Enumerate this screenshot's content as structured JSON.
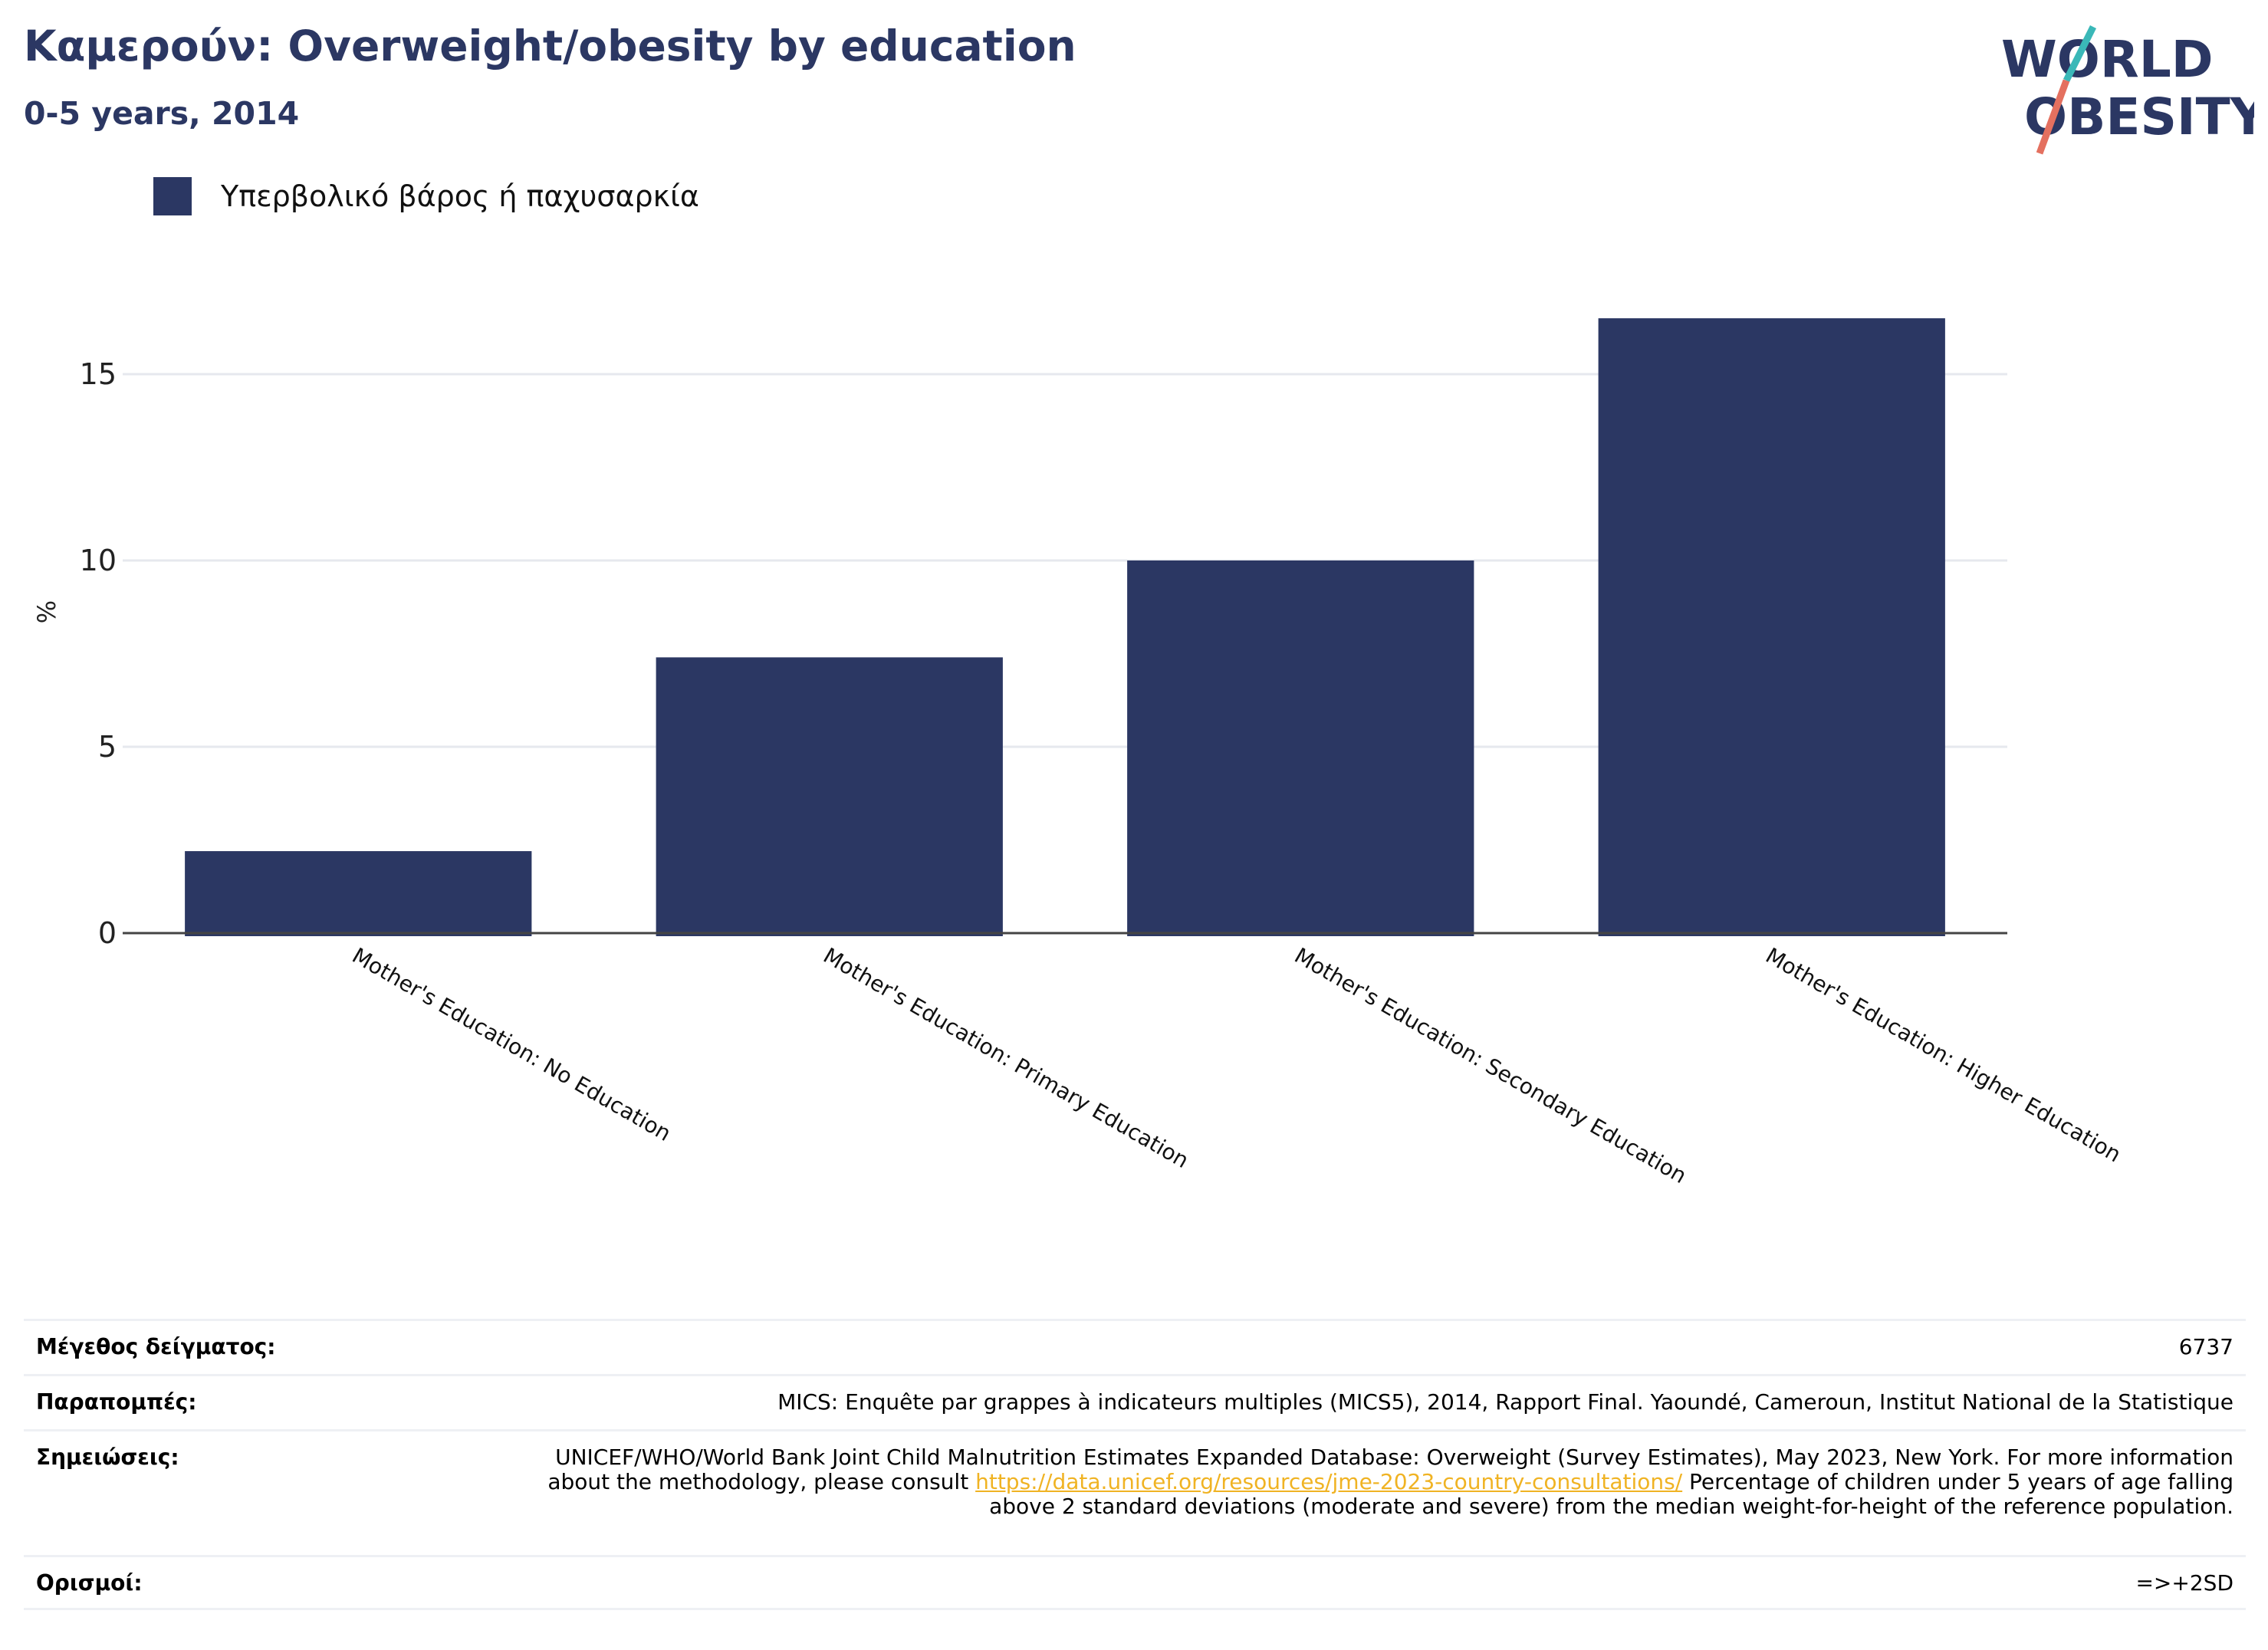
{
  "header": {
    "title": "Καμερούν: Overweight/obesity by education",
    "subtitle": "0-5 years, 2014"
  },
  "logo": {
    "line1": "WORLD",
    "line2": "OBESITY"
  },
  "legend": {
    "label": "Υπερβολικό βάρος ή παχυσαρκία",
    "color": "#2b3763"
  },
  "chart_data": {
    "type": "bar",
    "categories": [
      "Mother's Education: No Education",
      "Mother's Education: Primary Education",
      "Mother's Education: Secondary Education",
      "Mother's Education: Higher Education"
    ],
    "series": [
      {
        "name": "Υπερβολικό βάρος ή παχυσαρκία",
        "values": [
          2.2,
          7.4,
          10.0,
          16.5
        ],
        "color": "#2b3763"
      }
    ],
    "ylabel": "%",
    "ylim": [
      0,
      17.5
    ],
    "yticks": [
      0,
      5,
      10,
      15
    ],
    "grid": true,
    "legend_position": "top-left"
  },
  "footer": {
    "sample_label": "Μέγεθος δείγματος:",
    "sample_value": "6737",
    "refs_label": "Παραπομπές:",
    "refs_value": "MICS: Enquête par grappes à indicateurs multiples (MICS5), 2014, Rapport Final. Yaoundé, Cameroun, Institut National de la Statistique",
    "notes_label": "Σημειώσεις:",
    "notes_pre": "UNICEF/WHO/World Bank Joint Child Malnutrition Estimates Expanded Database: Overweight (Survey Estimates), May 2023, New York. For more information about the methodology, please consult",
    "notes_link": "https://data.unicef.org/resources/jme-2023-country-consultations/",
    "notes_post": "Percentage of children under 5 years of age falling above 2 standard deviations (moderate and severe) from the median weight-for-height of the reference population.",
    "defs_label": "Ορισμοί:",
    "defs_value": "=>+2SD"
  }
}
